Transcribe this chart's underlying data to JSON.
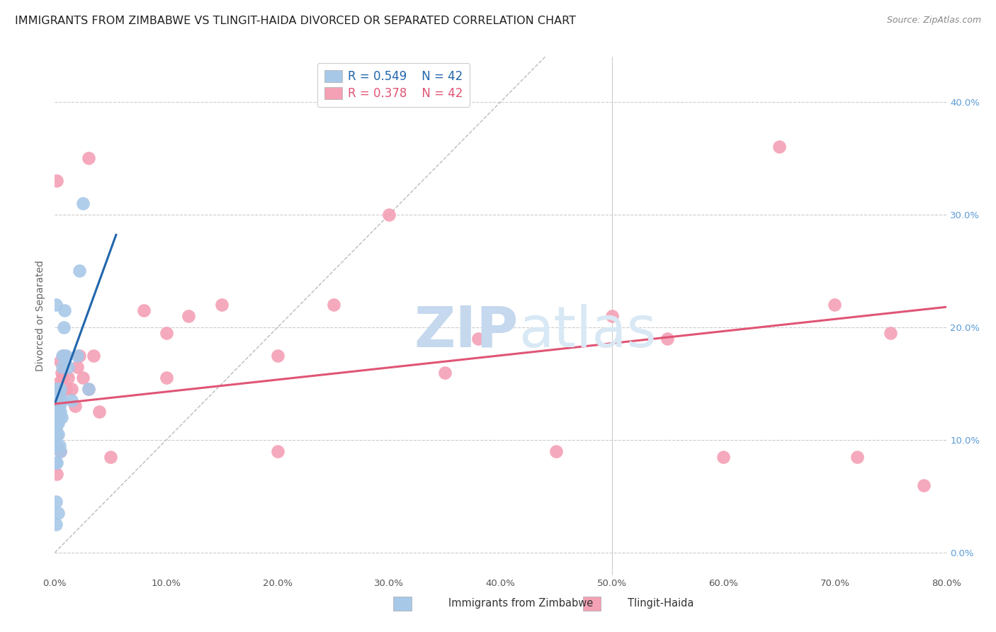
{
  "title": "IMMIGRANTS FROM ZIMBABWE VS TLINGIT-HAIDA DIVORCED OR SEPARATED CORRELATION CHART",
  "source": "Source: ZipAtlas.com",
  "ylabel": "Divorced or Separated",
  "legend_r1": "R = 0.549",
  "legend_n1": "N = 42",
  "legend_r2": "R = 0.378",
  "legend_n2": "N = 42",
  "legend_label1": "Immigrants from Zimbabwe",
  "legend_label2": "Tlingit-Haida",
  "xlim": [
    0.0,
    0.8
  ],
  "ylim": [
    -0.02,
    0.44
  ],
  "yticks": [
    0.0,
    0.1,
    0.2,
    0.3,
    0.4
  ],
  "xticks": [
    0.0,
    0.1,
    0.2,
    0.3,
    0.4,
    0.5,
    0.6,
    0.7,
    0.8
  ],
  "blue_color": "#a8c8e8",
  "pink_color": "#f4a0b5",
  "blue_line_color": "#2166ac",
  "pink_line_color": "#e05575",
  "watermark_zip": "ZIP",
  "watermark_atlas": "atlas",
  "blue_x": [
    0.0005,
    0.001,
    0.001,
    0.001,
    0.001,
    0.002,
    0.002,
    0.002,
    0.002,
    0.002,
    0.002,
    0.003,
    0.003,
    0.003,
    0.003,
    0.003,
    0.004,
    0.004,
    0.004,
    0.004,
    0.005,
    0.005,
    0.005,
    0.006,
    0.006,
    0.007,
    0.007,
    0.008,
    0.009,
    0.01,
    0.012,
    0.015,
    0.02,
    0.022,
    0.025,
    0.03,
    0.001,
    0.001,
    0.002,
    0.003,
    0.001,
    0.001
  ],
  "blue_y": [
    0.135,
    0.14,
    0.13,
    0.12,
    0.11,
    0.145,
    0.135,
    0.125,
    0.115,
    0.105,
    0.095,
    0.145,
    0.135,
    0.125,
    0.115,
    0.105,
    0.14,
    0.13,
    0.12,
    0.095,
    0.145,
    0.125,
    0.09,
    0.135,
    0.12,
    0.175,
    0.165,
    0.2,
    0.215,
    0.175,
    0.165,
    0.135,
    0.175,
    0.25,
    0.31,
    0.145,
    0.22,
    0.08,
    0.08,
    0.035,
    0.045,
    0.025
  ],
  "pink_x": [
    0.001,
    0.002,
    0.003,
    0.004,
    0.005,
    0.006,
    0.007,
    0.008,
    0.01,
    0.012,
    0.015,
    0.018,
    0.02,
    0.022,
    0.025,
    0.03,
    0.035,
    0.04,
    0.05,
    0.1,
    0.1,
    0.12,
    0.15,
    0.2,
    0.25,
    0.3,
    0.38,
    0.45,
    0.5,
    0.55,
    0.6,
    0.65,
    0.7,
    0.72,
    0.75,
    0.78,
    0.03,
    0.08,
    0.2,
    0.35,
    0.002,
    0.005
  ],
  "pink_y": [
    0.13,
    0.07,
    0.15,
    0.14,
    0.17,
    0.16,
    0.155,
    0.175,
    0.145,
    0.155,
    0.145,
    0.13,
    0.165,
    0.175,
    0.155,
    0.145,
    0.175,
    0.125,
    0.085,
    0.155,
    0.195,
    0.21,
    0.22,
    0.175,
    0.22,
    0.3,
    0.19,
    0.09,
    0.21,
    0.19,
    0.085,
    0.36,
    0.22,
    0.085,
    0.195,
    0.06,
    0.35,
    0.215,
    0.09,
    0.16,
    0.33,
    0.09
  ],
  "blue_line_x": [
    0.0,
    0.055
  ],
  "blue_line_y": [
    0.132,
    0.282
  ],
  "pink_line_x": [
    0.0,
    0.8
  ],
  "pink_line_y": [
    0.132,
    0.218
  ],
  "diag_line_x": [
    0.0,
    0.44
  ],
  "diag_line_y": [
    0.0,
    0.44
  ],
  "title_fontsize": 11.5,
  "source_fontsize": 9,
  "axis_label_fontsize": 10,
  "tick_fontsize": 9.5
}
